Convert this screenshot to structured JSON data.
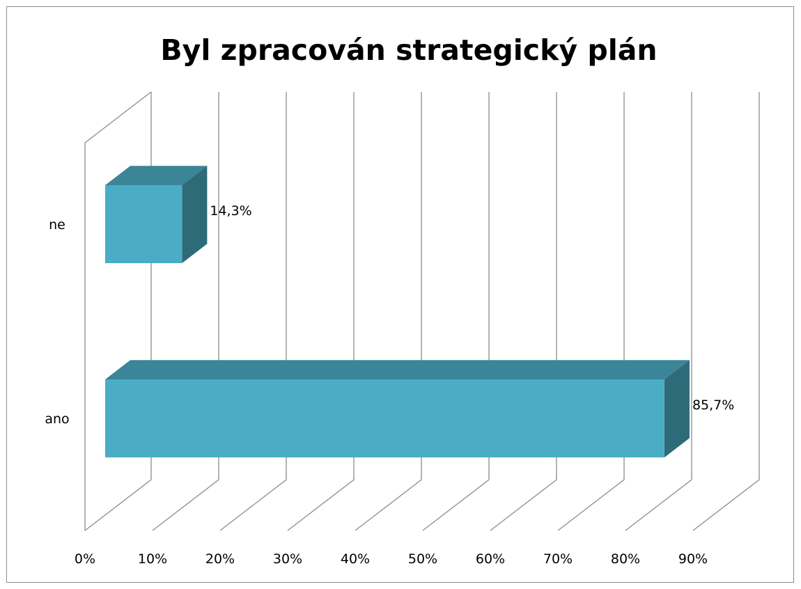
{
  "chart_data": {
    "type": "bar",
    "orientation": "horizontal",
    "style": "3d",
    "title": "Byl zpracován strategický plán",
    "categories": [
      "ne",
      "ano"
    ],
    "values": [
      14.3,
      85.7
    ],
    "data_labels": [
      "14,3%",
      "85,7%"
    ],
    "x_ticks": [
      "0%",
      "10%",
      "20%",
      "30%",
      "40%",
      "50%",
      "60%",
      "70%",
      "80%",
      "90%"
    ],
    "xlim": [
      0,
      90
    ],
    "xlabel": "",
    "ylabel": "",
    "grid": true,
    "legend": "none",
    "colors": {
      "bar_front": "#4bacc6",
      "bar_top": "#3a8597",
      "bar_side": "#2e6b79",
      "gridline": "#8c8c8c",
      "frame": "#8c8c8c"
    }
  }
}
